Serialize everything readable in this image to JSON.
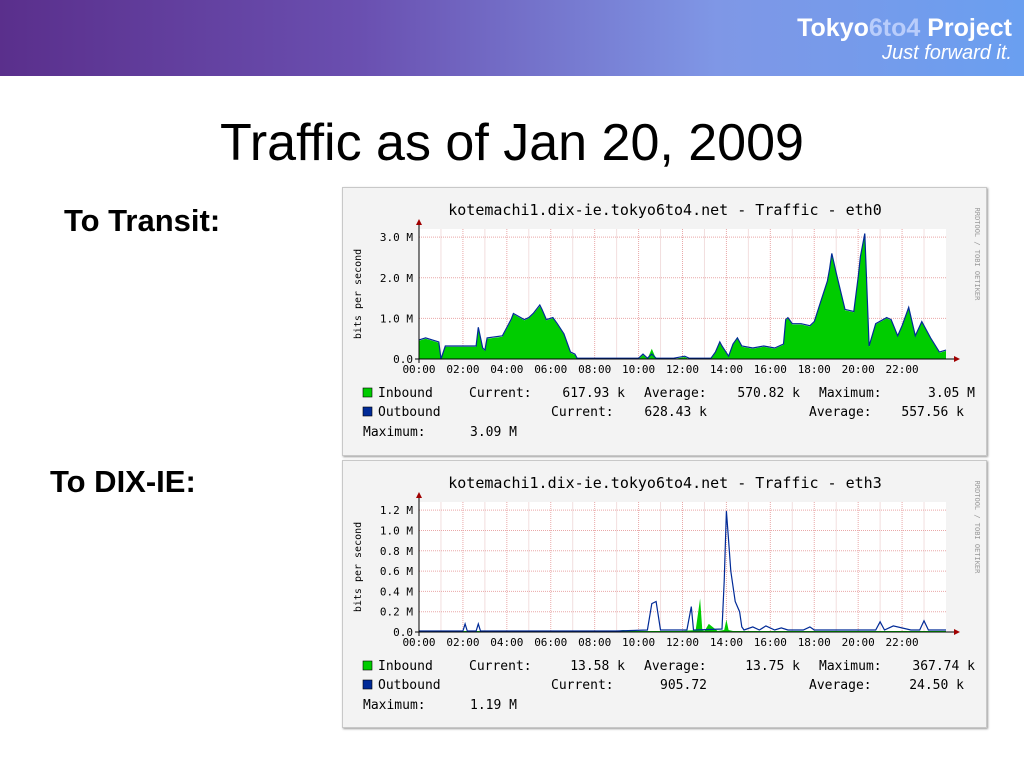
{
  "header": {
    "brand_a": "Tokyo",
    "brand_b": "6to4",
    "brand_c": " Project",
    "tagline": "Just forward it.",
    "brand_color": "#b9cdfb"
  },
  "slide": {
    "title": "Traffic as of Jan 20, 2009"
  },
  "sections": [
    {
      "label": "To Transit:"
    },
    {
      "label": "To DIX-IE:"
    }
  ],
  "chart_data": [
    {
      "type": "area",
      "title": "kotemachi1.dix-ie.tokyo6to4.net - Traffic - eth0",
      "ylabel": "bits per second",
      "watermark": "RRDTOOL / TOBI OETIKER",
      "xlim": [
        0,
        24
      ],
      "ylim": [
        0,
        3.2
      ],
      "yticks": [
        0,
        1,
        2,
        3
      ],
      "ytick_labels": [
        "0.0",
        "1.0 M",
        "2.0 M",
        "3.0 M"
      ],
      "xticks": [
        0,
        2,
        4,
        6,
        8,
        10,
        12,
        14,
        16,
        18,
        20,
        22
      ],
      "xtick_labels": [
        "00:00",
        "02:00",
        "04:00",
        "06:00",
        "08:00",
        "10:00",
        "12:00",
        "14:00",
        "16:00",
        "18:00",
        "20:00",
        "22:00"
      ],
      "grid": true,
      "series": [
        {
          "name": "Inbound",
          "color": "#00cc00",
          "x": [
            0,
            0.3,
            0.9,
            1.0,
            1.2,
            2.6,
            2.7,
            2.9,
            3.0,
            3.1,
            3.8,
            4.2,
            4.3,
            4.8,
            5.0,
            5.2,
            5.5,
            5.6,
            5.8,
            6.1,
            6.3,
            6.6,
            6.9,
            7.1,
            7.2,
            7.5,
            8.8,
            9.0,
            10.0,
            10.2,
            10.4,
            10.6,
            10.8,
            11.6,
            12.1,
            12.3,
            12.6,
            13.3,
            13.5,
            13.7,
            13.8,
            14.1,
            14.3,
            14.5,
            14.7,
            15.2,
            15.7,
            16.2,
            16.6,
            16.7,
            16.8,
            17.0,
            17.4,
            17.8,
            18.0,
            18.3,
            18.6,
            18.7,
            18.8,
            19.0,
            19.4,
            19.8,
            20.0,
            20.1,
            20.3,
            20.5,
            20.8,
            21.3,
            21.5,
            21.8,
            22.0,
            22.3,
            22.6,
            22.9,
            23.3,
            23.7,
            24
          ],
          "y": [
            0.45,
            0.5,
            0.4,
            0,
            0.3,
            0.3,
            0.75,
            0.25,
            0.2,
            0.5,
            0.55,
            0.95,
            1.1,
            0.95,
            1.0,
            1.1,
            1.3,
            1.2,
            0.95,
            1.0,
            0.85,
            0.6,
            0.15,
            0.1,
            0,
            0,
            0,
            0,
            0,
            0.1,
            0,
            0.25,
            0,
            0,
            0.05,
            0,
            0,
            0,
            0.15,
            0.4,
            0.3,
            0.05,
            0.35,
            0.5,
            0.3,
            0.25,
            0.3,
            0.25,
            0.35,
            0.95,
            1.0,
            0.85,
            0.85,
            0.8,
            0.9,
            1.4,
            1.9,
            2.2,
            2.55,
            2.1,
            1.2,
            1.15,
            2.0,
            2.5,
            3.05,
            0.3,
            0.85,
            1.0,
            0.95,
            0.55,
            0.8,
            1.25,
            0.55,
            0.9,
            0.5,
            0.15,
            0.2
          ]
        },
        {
          "name": "Outbound",
          "color": "#002a97",
          "x": [
            0,
            0.3,
            0.9,
            1.0,
            1.2,
            2.6,
            2.7,
            2.9,
            3.0,
            3.1,
            3.8,
            4.2,
            4.3,
            4.8,
            5.0,
            5.2,
            5.5,
            5.6,
            5.8,
            6.1,
            6.3,
            6.6,
            6.9,
            7.1,
            7.2,
            7.5,
            8.8,
            9.0,
            10.0,
            10.2,
            10.4,
            10.6,
            10.8,
            11.6,
            12.1,
            12.3,
            12.6,
            13.3,
            13.5,
            13.7,
            13.8,
            14.1,
            14.3,
            14.5,
            14.7,
            15.2,
            15.7,
            16.2,
            16.6,
            16.7,
            16.8,
            17.0,
            17.4,
            17.8,
            18.0,
            18.3,
            18.6,
            18.7,
            18.8,
            19.0,
            19.4,
            19.8,
            20.0,
            20.1,
            20.3,
            20.5,
            20.8,
            21.3,
            21.5,
            21.8,
            22.0,
            22.3,
            22.6,
            22.9,
            23.3,
            23.7,
            24
          ],
          "y": [
            0.47,
            0.52,
            0.42,
            0,
            0.32,
            0.32,
            0.78,
            0.27,
            0.22,
            0.52,
            0.57,
            0.98,
            1.12,
            0.97,
            1.02,
            1.12,
            1.33,
            1.22,
            0.97,
            1.02,
            0.87,
            0.62,
            0.17,
            0.12,
            0.02,
            0.02,
            0.02,
            0.02,
            0.02,
            0.12,
            0.02,
            0.12,
            0.02,
            0.02,
            0.07,
            0.02,
            0.02,
            0.02,
            0.17,
            0.42,
            0.32,
            0.07,
            0.37,
            0.52,
            0.32,
            0.27,
            0.32,
            0.27,
            0.37,
            0.97,
            1.02,
            0.87,
            0.87,
            0.82,
            0.92,
            1.42,
            1.92,
            2.22,
            2.6,
            2.12,
            1.22,
            1.17,
            2.02,
            2.52,
            3.09,
            0.32,
            0.87,
            1.02,
            0.97,
            0.57,
            0.82,
            1.27,
            0.57,
            0.92,
            0.52,
            0.17,
            0.22
          ]
        }
      ],
      "legend": [
        {
          "name": "Inbound",
          "current": "617.93 k",
          "average": "570.82 k",
          "maximum": "3.05 M"
        },
        {
          "name": "Outbound",
          "current": "628.43 k",
          "average": "557.56 k",
          "maximum": "3.09 M"
        }
      ],
      "labels": {
        "current": "Current:",
        "average": "Average:",
        "maximum": "Maximum:"
      }
    },
    {
      "type": "area",
      "title": "kotemachi1.dix-ie.tokyo6to4.net - Traffic - eth3",
      "ylabel": "bits per second",
      "watermark": "RRDTOOL / TOBI OETIKER",
      "xlim": [
        0,
        24
      ],
      "ylim": [
        0,
        1.28
      ],
      "yticks": [
        0,
        0.2,
        0.4,
        0.6,
        0.8,
        1.0,
        1.2
      ],
      "ytick_labels": [
        "0.0",
        "0.2 M",
        "0.4 M",
        "0.6 M",
        "0.8 M",
        "1.0 M",
        "1.2 M"
      ],
      "xticks": [
        0,
        2,
        4,
        6,
        8,
        10,
        12,
        14,
        16,
        18,
        20,
        22
      ],
      "xtick_labels": [
        "00:00",
        "02:00",
        "04:00",
        "06:00",
        "08:00",
        "10:00",
        "12:00",
        "14:00",
        "16:00",
        "18:00",
        "20:00",
        "22:00"
      ],
      "grid": true,
      "series": [
        {
          "name": "Inbound",
          "color": "#00cc00",
          "x": [
            0,
            9.0,
            9.3,
            9.6,
            12.0,
            12.6,
            12.8,
            12.9,
            13.0,
            13.2,
            13.6,
            13.9,
            14.0,
            14.1,
            14.3,
            24
          ],
          "y": [
            0.01,
            0.01,
            0.02,
            0.01,
            0.01,
            0.02,
            0.33,
            0.02,
            0.01,
            0.08,
            0.01,
            0.02,
            0.12,
            0.02,
            0.01,
            0.01
          ]
        },
        {
          "name": "Outbound",
          "color": "#002a97",
          "x": [
            0,
            2.0,
            2.1,
            2.2,
            2.6,
            2.7,
            2.8,
            9.0,
            10.4,
            10.6,
            10.8,
            11.0,
            12.2,
            12.4,
            12.5,
            12.6,
            13.8,
            13.9,
            14.0,
            14.1,
            14.2,
            14.3,
            14.4,
            14.6,
            14.7,
            14.8,
            15.2,
            15.5,
            15.8,
            16.2,
            16.5,
            16.8,
            17.5,
            17.8,
            18.0,
            19.0,
            20.8,
            21.0,
            21.2,
            21.6,
            22.4,
            22.8,
            23.0,
            23.2,
            23.6,
            24
          ],
          "y": [
            0.01,
            0.01,
            0.08,
            0.01,
            0.01,
            0.08,
            0.01,
            0.01,
            0.02,
            0.28,
            0.3,
            0.02,
            0.02,
            0.25,
            0.02,
            0.02,
            0.03,
            0.5,
            1.19,
            0.9,
            0.6,
            0.45,
            0.3,
            0.2,
            0.05,
            0.02,
            0.05,
            0.02,
            0.06,
            0.02,
            0.04,
            0.02,
            0.02,
            0.05,
            0.02,
            0.02,
            0.02,
            0.1,
            0.02,
            0.06,
            0.02,
            0.02,
            0.11,
            0.02,
            0.02,
            0.02
          ]
        }
      ],
      "legend": [
        {
          "name": "Inbound",
          "current": "13.58 k",
          "average": "13.75 k",
          "maximum": "367.74 k"
        },
        {
          "name": "Outbound",
          "current": "905.72",
          "average": "24.50 k",
          "maximum": "1.19 M"
        }
      ],
      "labels": {
        "current": "Current:",
        "average": "Average:",
        "maximum": "Maximum:"
      }
    }
  ]
}
